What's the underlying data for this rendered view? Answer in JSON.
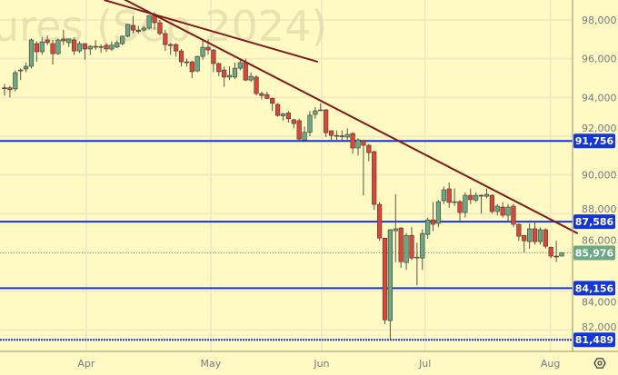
{
  "watermark": "ures (Sep 2024)",
  "colors": {
    "background": "#fff9c4",
    "up": "#6aa886",
    "down": "#d9473a",
    "outline": "#4a3a2a",
    "level": "#1536d6",
    "trendline": "#7e1a1a",
    "last": "#6aa886"
  },
  "settings_icon": "gear-icon",
  "chart_data": {
    "type": "candlestick",
    "ylim": [
      81000,
      99000
    ],
    "y_ticks": [
      "82,000",
      "84,000",
      "86,000",
      "88,000",
      "90,000",
      "92,000",
      "94,000",
      "96,000",
      "98,000"
    ],
    "y_tick_values": [
      82000,
      84000,
      86000,
      88000,
      90000,
      92000,
      94000,
      96000,
      98000
    ],
    "grid": true,
    "month_ticks": [
      {
        "label": "Apr",
        "index": 15.25
      },
      {
        "label": "May",
        "index": 38.5
      },
      {
        "label": "Jun",
        "index": 59.2
      },
      {
        "label": "Jul",
        "index": 78.5
      },
      {
        "label": "Aug",
        "index": 101.9
      }
    ],
    "candles_ohlc": [
      [
        94500,
        94700,
        94100,
        94450
      ],
      [
        94500,
        94600,
        94000,
        94400
      ],
      [
        94440,
        95400,
        94300,
        95280
      ],
      [
        95370,
        95500,
        94900,
        95420
      ],
      [
        95470,
        95800,
        95300,
        95610
      ],
      [
        95610,
        97050,
        95500,
        96970
      ],
      [
        96780,
        96900,
        95850,
        96360
      ],
      [
        96360,
        97100,
        96200,
        96870
      ],
      [
        96970,
        97200,
        96700,
        96830
      ],
      [
        96780,
        96970,
        95700,
        96260
      ],
      [
        96260,
        97050,
        96200,
        96970
      ],
      [
        97020,
        97500,
        96700,
        96920
      ],
      [
        96830,
        97050,
        96600,
        97020
      ],
      [
        96970,
        97100,
        96200,
        96400
      ],
      [
        96400,
        96900,
        96300,
        96780
      ],
      [
        96780,
        96800,
        95950,
        96500
      ],
      [
        96500,
        96700,
        96200,
        96640
      ],
      [
        96640,
        96950,
        96450,
        96620
      ],
      [
        96620,
        96750,
        96300,
        96630
      ],
      [
        96690,
        96800,
        96350,
        96500
      ],
      [
        96500,
        96900,
        96400,
        96700
      ],
      [
        96600,
        96950,
        96550,
        96830
      ],
      [
        96780,
        97200,
        96700,
        97160
      ],
      [
        97160,
        97800,
        97100,
        97770
      ],
      [
        97720,
        98200,
        97300,
        97480
      ],
      [
        97480,
        97700,
        97300,
        97400
      ],
      [
        97480,
        97700,
        97400,
        97580
      ],
      [
        97580,
        98250,
        97500,
        98230
      ],
      [
        98280,
        98400,
        97500,
        97860
      ],
      [
        97860,
        98000,
        97200,
        97300
      ],
      [
        97300,
        97500,
        96400,
        96730
      ],
      [
        96730,
        96800,
        96200,
        96690
      ],
      [
        96730,
        96800,
        96100,
        96400
      ],
      [
        96400,
        96500,
        95600,
        95840
      ],
      [
        95840,
        96000,
        95600,
        95820
      ],
      [
        95840,
        95900,
        95000,
        95330
      ],
      [
        95370,
        96150,
        95300,
        96120
      ],
      [
        96120,
        97000,
        95950,
        96590
      ],
      [
        96590,
        97000,
        96200,
        96450
      ],
      [
        96450,
        96500,
        95300,
        95750
      ],
      [
        95750,
        95800,
        95100,
        95330
      ],
      [
        95420,
        95600,
        94550,
        95050
      ],
      [
        95050,
        95600,
        94900,
        95140
      ],
      [
        95050,
        95800,
        94950,
        95510
      ],
      [
        95510,
        96000,
        95400,
        95800
      ],
      [
        95800,
        96000,
        94850,
        94900
      ],
      [
        94900,
        95300,
        94800,
        95090
      ],
      [
        95050,
        95150,
        94100,
        94200
      ],
      [
        94200,
        94300,
        93900,
        94100
      ],
      [
        94150,
        94300,
        93900,
        93950
      ],
      [
        93950,
        94000,
        93300,
        93700
      ],
      [
        93640,
        93700,
        93000,
        93070
      ],
      [
        93050,
        93200,
        92800,
        93150
      ],
      [
        93200,
        93300,
        92700,
        92900
      ],
      [
        92850,
        92900,
        92400,
        92650
      ],
      [
        92800,
        92900,
        91750,
        91850
      ],
      [
        91800,
        92500,
        91750,
        92200
      ],
      [
        92200,
        93300,
        92000,
        93080
      ],
      [
        93120,
        93500,
        92900,
        93310
      ],
      [
        93340,
        93700,
        93300,
        93360
      ],
      [
        93360,
        93400,
        91950,
        92180
      ],
      [
        92280,
        92300,
        91800,
        92040
      ],
      [
        92040,
        92300,
        91800,
        92020
      ],
      [
        92020,
        92300,
        91800,
        92000
      ],
      [
        91950,
        92400,
        91750,
        92090
      ],
      [
        92140,
        92200,
        91100,
        91390
      ],
      [
        91390,
        91900,
        91000,
        91810
      ],
      [
        91760,
        91800,
        88950,
        91530
      ],
      [
        91530,
        91600,
        90700,
        91150
      ],
      [
        91200,
        91250,
        88200,
        88480
      ],
      [
        88480,
        88600,
        86600,
        86740
      ],
      [
        86740,
        86750,
        82300,
        82520
      ],
      [
        82480,
        87200,
        81500,
        87170
      ],
      [
        87120,
        89000,
        85500,
        87220
      ],
      [
        87260,
        87300,
        85200,
        85520
      ],
      [
        85480,
        87000,
        85100,
        86880
      ],
      [
        86880,
        87300,
        85600,
        85710
      ],
      [
        85740,
        86500,
        84300,
        85760
      ],
      [
        85710,
        87200,
        85100,
        86980
      ],
      [
        86930,
        87800,
        86700,
        87680
      ],
      [
        87680,
        88600,
        87100,
        87450
      ],
      [
        87500,
        88700,
        87300,
        88620
      ],
      [
        88670,
        89400,
        88500,
        89230
      ],
      [
        89280,
        89600,
        88300,
        88580
      ],
      [
        88600,
        89300,
        88400,
        88620
      ],
      [
        88620,
        88700,
        87600,
        88060
      ],
      [
        88060,
        89100,
        87800,
        88950
      ],
      [
        88950,
        89300,
        88500,
        88720
      ],
      [
        88700,
        89100,
        88600,
        88950
      ],
      [
        88950,
        89000,
        88000,
        88930
      ],
      [
        88900,
        89300,
        88800,
        89000
      ],
      [
        88950,
        89000,
        88000,
        88110
      ],
      [
        88110,
        88500,
        87900,
        88390
      ],
      [
        88340,
        88600,
        87800,
        87920
      ],
      [
        87920,
        88500,
        87600,
        88340
      ],
      [
        88390,
        88500,
        87300,
        87450
      ],
      [
        87450,
        87500,
        86600,
        86840
      ],
      [
        86880,
        86900,
        86000,
        86600
      ],
      [
        86560,
        87500,
        86200,
        87220
      ],
      [
        87220,
        87600,
        86400,
        86560
      ],
      [
        86560,
        87300,
        86400,
        87170
      ],
      [
        87170,
        87250,
        86200,
        86320
      ],
      [
        86270,
        86300,
        85700,
        85810
      ],
      [
        85810,
        86600,
        85500,
        85800
      ],
      [
        85810,
        86000,
        85850,
        85976
      ]
    ],
    "levels": [
      {
        "price": 91756,
        "label": "91,756",
        "style": "solid"
      },
      {
        "price": 87586,
        "label": "87,586",
        "style": "solid"
      },
      {
        "price": 84156,
        "label": "84,156",
        "style": "solid"
      },
      {
        "price": 81489,
        "label": "81,489",
        "style": "dotted"
      }
    ],
    "last_price": {
      "price": 85976,
      "label": "85,976"
    },
    "trendlines": [
      {
        "from": {
          "index": 18.6,
          "price": 99600
        },
        "to": {
          "index": 107,
          "price": 86980
        }
      },
      {
        "from": {
          "index": 18.6,
          "price": 99030
        },
        "to": {
          "index": 58.5,
          "price": 95840
        }
      }
    ]
  }
}
